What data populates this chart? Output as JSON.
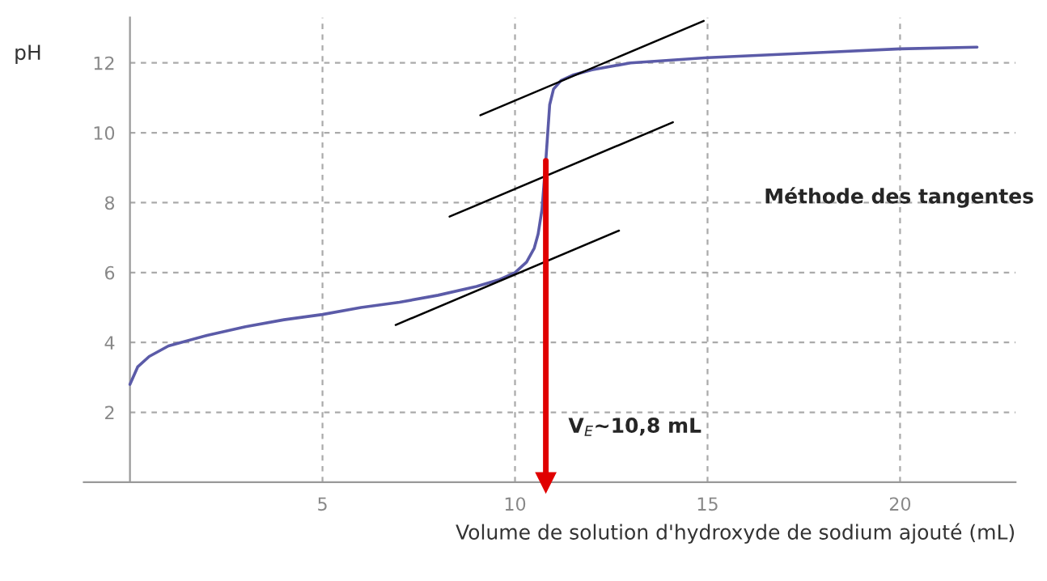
{
  "chart_data": {
    "type": "line",
    "xlabel": "Volume de solution d'hydroxyde de sodium ajouté (mL)",
    "ylabel": "pH",
    "xlim": [
      -1.2,
      23
    ],
    "ylim": [
      0,
      13.3
    ],
    "xticks": [
      5,
      10,
      15,
      20
    ],
    "yticks": [
      2,
      4,
      6,
      8,
      10,
      12
    ],
    "grid": true,
    "series": [
      {
        "color": "#5b5ba8",
        "x": [
          0,
          0.2,
          0.5,
          1,
          2,
          3,
          4,
          5,
          6,
          7,
          8,
          9,
          9.6,
          10,
          10.3,
          10.5,
          10.6,
          10.7,
          10.75,
          10.8,
          10.85,
          10.9,
          11.0,
          11.2,
          11.5,
          12,
          13,
          15,
          18,
          20,
          22
        ],
        "values": [
          2.8,
          3.3,
          3.6,
          3.9,
          4.2,
          4.45,
          4.65,
          4.8,
          5.0,
          5.15,
          5.35,
          5.6,
          5.8,
          6.0,
          6.3,
          6.7,
          7.1,
          7.8,
          8.5,
          9.2,
          10.0,
          10.8,
          11.25,
          11.5,
          11.65,
          11.8,
          12.0,
          12.15,
          12.3,
          12.4,
          12.45
        ]
      },
      {
        "color": "#000000",
        "x": [
          9.1,
          14.9
        ],
        "values": [
          10.5,
          13.2
        ]
      },
      {
        "color": "#000000",
        "x": [
          8.3,
          14.1
        ],
        "values": [
          7.6,
          10.3
        ]
      },
      {
        "color": "#000000",
        "x": [
          6.9,
          12.7
        ],
        "values": [
          4.5,
          7.2
        ]
      }
    ],
    "ref_lines": [
      {
        "axis": "x",
        "value": 10.8,
        "label": "V$_{E}$~10,8 mL",
        "color": "#e00000"
      }
    ],
    "annotations": [
      "Méthode des tangentes"
    ]
  }
}
